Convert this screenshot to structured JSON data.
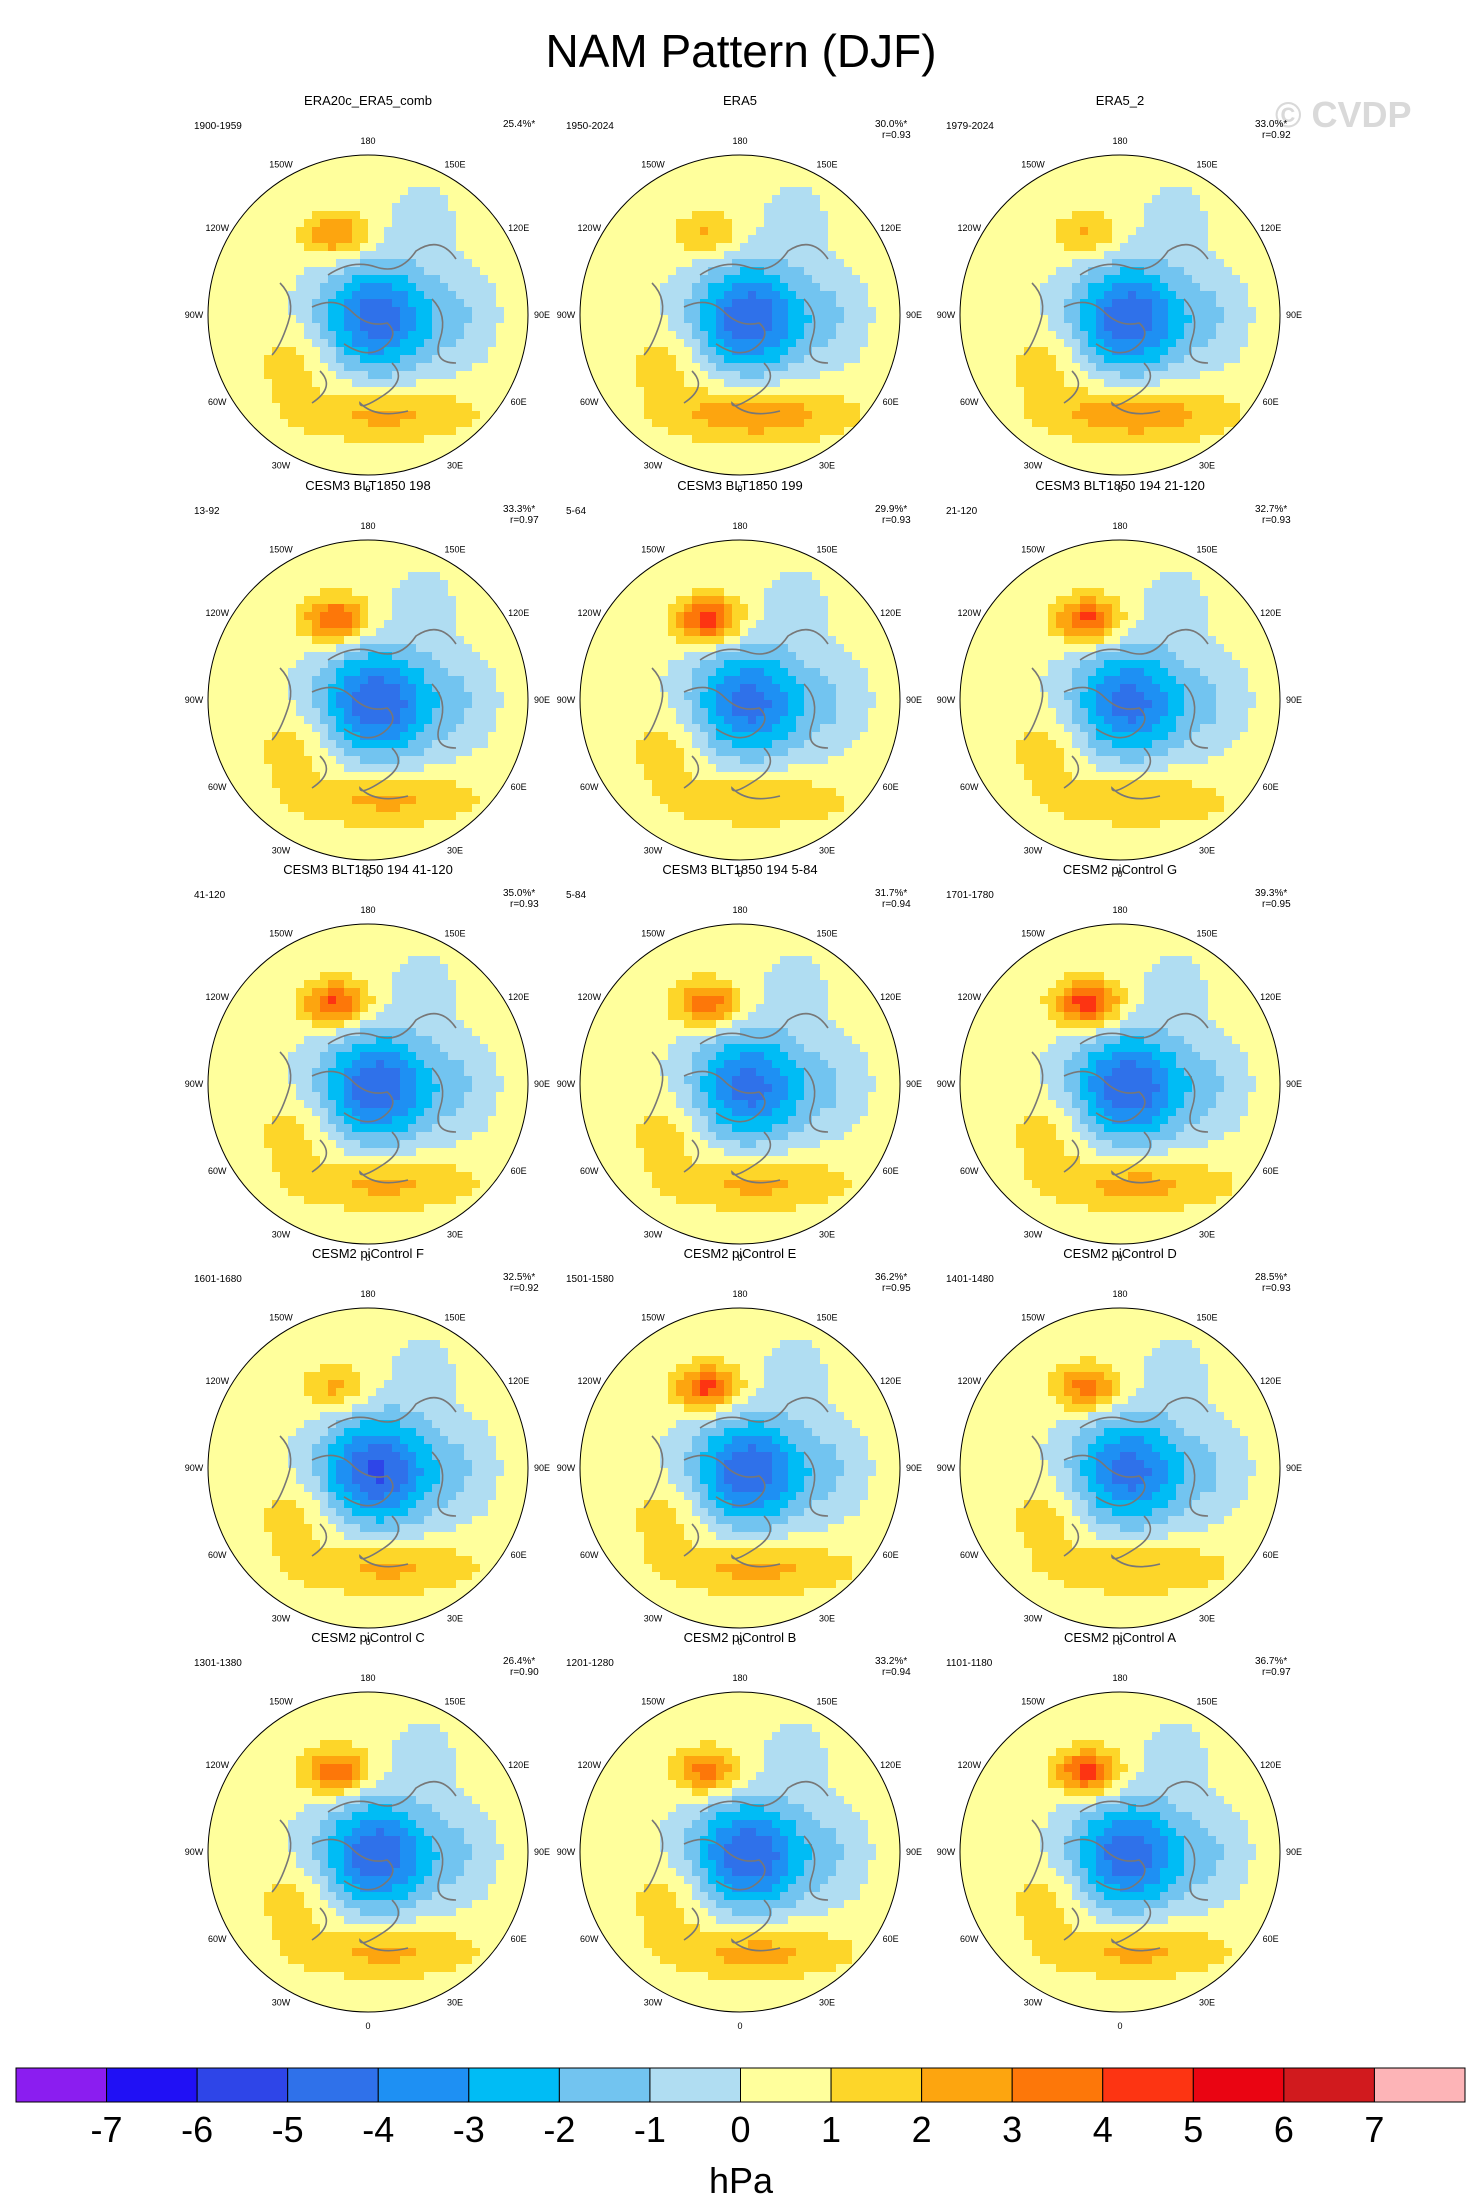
{
  "title": "NAM Pattern (DJF)",
  "watermark": "© CVDP",
  "lon_labels": [
    "180",
    "150E",
    "120E",
    "90E",
    "60E",
    "30E",
    "0",
    "30W",
    "60W",
    "90W",
    "120W",
    "150W"
  ],
  "colors": {
    "coastline": "#777777",
    "map_border": "#000000",
    "palette": [
      "#8b1df0",
      "#2010f5",
      "#2e45e8",
      "#2f71ea",
      "#1e90f3",
      "#00bcf5",
      "#72c4f0",
      "#b0ddf2",
      "#ffff9c",
      "#fdd629",
      "#fda50f",
      "#fd7709",
      "#fd3412",
      "#ea0412",
      "#d11a1e",
      "#fdb4b7"
    ]
  },
  "panels": [
    {
      "name": "ERA20c_ERA5_comb",
      "years": "1900-1959",
      "pct": "25.4%*",
      "r": "",
      "low": 0.95,
      "pac": 0.62,
      "atl": 0.55
    },
    {
      "name": "ERA5",
      "years": "1950-2024",
      "pct": "30.0%*",
      "r": "r=0.93",
      "low": 1.0,
      "pac": 0.42,
      "atl": 0.72
    },
    {
      "name": "ERA5_2",
      "years": "1979-2024",
      "pct": "33.0%*",
      "r": "r=0.92",
      "low": 1.0,
      "pac": 0.42,
      "atl": 0.72
    },
    {
      "name": "CESM3 BLT1850 198",
      "years": "13-92",
      "pct": "33.3%*",
      "r": "r=0.97",
      "low": 1.02,
      "pac": 0.82,
      "atl": 0.55
    },
    {
      "name": "CESM3 BLT1850 199",
      "years": "5-64",
      "pct": "29.9%*",
      "r": "r=0.93",
      "low": 0.92,
      "pac": 0.95,
      "atl": 0.48
    },
    {
      "name": "CESM3 BLT1850 194 21-120",
      "years": "21-120",
      "pct": "32.7%*",
      "r": "r=0.93",
      "low": 0.92,
      "pac": 0.88,
      "atl": 0.48
    },
    {
      "name": "CESM3 BLT1850 194 41-120",
      "years": "41-120",
      "pct": "35.0%*",
      "r": "r=0.93",
      "low": 1.0,
      "pac": 0.88,
      "atl": 0.55
    },
    {
      "name": "CESM3 BLT1850 194 5-84",
      "years": "5-84",
      "pct": "31.7%*",
      "r": "r=0.94",
      "low": 0.92,
      "pac": 0.78,
      "atl": 0.55
    },
    {
      "name": "CESM2 piControl G",
      "years": "1701-1780",
      "pct": "39.3%*",
      "r": "r=0.95",
      "low": 1.02,
      "pac": 0.98,
      "atl": 0.6
    },
    {
      "name": "CESM2 piControl F",
      "years": "1601-1680",
      "pct": "32.5%*",
      "r": "r=0.92",
      "low": 1.05,
      "pac": 0.45,
      "atl": 0.55
    },
    {
      "name": "CESM2 piControl E",
      "years": "1501-1580",
      "pct": "36.2%*",
      "r": "r=0.95",
      "low": 1.0,
      "pac": 0.9,
      "atl": 0.58
    },
    {
      "name": "CESM2 piControl D",
      "years": "1401-1480",
      "pct": "28.5%*",
      "r": "r=0.93",
      "low": 0.92,
      "pac": 0.72,
      "atl": 0.5
    },
    {
      "name": "CESM2 piControl C",
      "years": "1301-1380",
      "pct": "26.4%*",
      "r": "r=0.90",
      "low": 1.0,
      "pac": 0.8,
      "atl": 0.55
    },
    {
      "name": "CESM2 piControl B",
      "years": "1201-1280",
      "pct": "33.2%*",
      "r": "r=0.94",
      "low": 1.02,
      "pac": 0.72,
      "atl": 0.6
    },
    {
      "name": "CESM2 piControl A",
      "years": "1101-1180",
      "pct": "36.7%*",
      "r": "r=0.97",
      "low": 0.98,
      "pac": 0.92,
      "atl": 0.55
    }
  ],
  "colorbar": {
    "ticks": [
      "-7",
      "-6",
      "-5",
      "-4",
      "-3",
      "-2",
      "-1",
      "0",
      "1",
      "2",
      "3",
      "4",
      "5",
      "6",
      "7"
    ],
    "unit": "hPa"
  }
}
